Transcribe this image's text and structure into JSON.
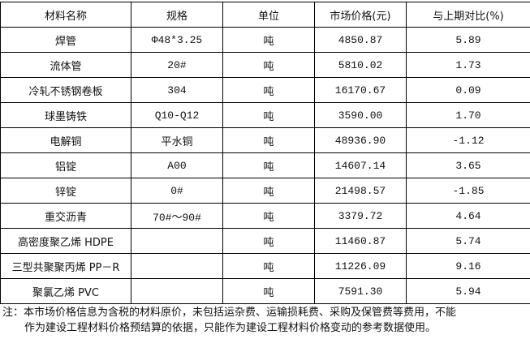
{
  "table": {
    "headers": [
      "材料名称",
      "规格",
      "单位",
      "市场价格(元)",
      "与上期对比(%)"
    ],
    "rows": [
      [
        "焊管",
        "Φ48*3.25",
        "吨",
        "4850.87",
        "5.89"
      ],
      [
        "流体管",
        "20#",
        "吨",
        "5810.02",
        "1.73"
      ],
      [
        "冷轧不锈钢卷板",
        "304",
        "吨",
        "16170.67",
        "0.09"
      ],
      [
        "球墨铸铁",
        "Q10-Q12",
        "吨",
        "3590.00",
        "1.70"
      ],
      [
        "电解铜",
        "平水铜",
        "吨",
        "48936.90",
        "-1.12"
      ],
      [
        "铝锭",
        "A00",
        "吨",
        "14607.14",
        "3.65"
      ],
      [
        "锌锭",
        "0#",
        "吨",
        "21498.57",
        "-1.85"
      ],
      [
        "重交沥青",
        "70#～90#",
        "吨",
        "3379.72",
        "4.64"
      ],
      [
        "高密度聚乙烯 HDPE",
        "",
        "吨",
        "11460.87",
        "5.74"
      ],
      [
        "三型共聚聚丙烯 PP－R",
        "",
        "吨",
        "11226.09",
        "9.16"
      ],
      [
        "聚氯乙烯 PVC",
        "",
        "吨",
        "7591.30",
        "5.94"
      ]
    ]
  },
  "note": {
    "line1": "注：本市场价格信息为含税的材料原价，未包括运杂费、运输损耗费、采购及保管费等费用，不能",
    "line2": "作为建设工程材料价格预结算的依据，只能作为建设工程材料价格变动的参考数据使用。"
  }
}
